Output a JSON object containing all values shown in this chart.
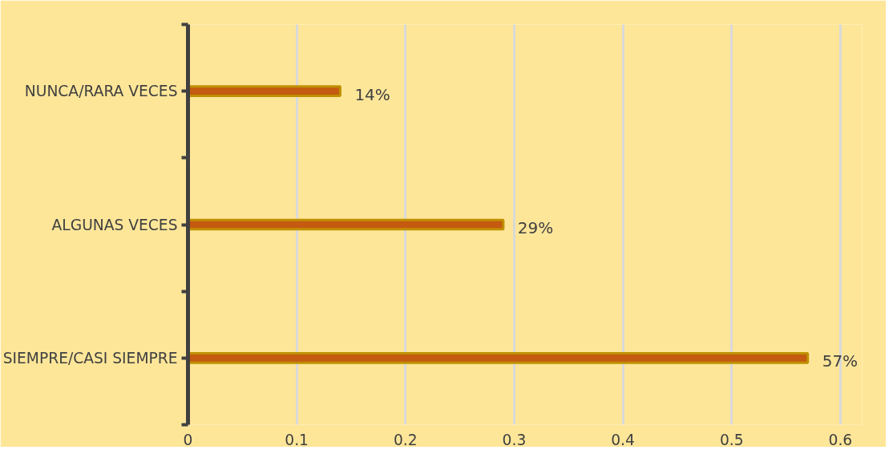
{
  "chart_data": {
    "type": "bar",
    "orientation": "horizontal",
    "categories": [
      "NUNCA/RARA VECES",
      "ALGUNAS VECES",
      "SIEMPRE/CASI SIEMPRE"
    ],
    "values": [
      0.14,
      0.29,
      0.57
    ],
    "value_labels": [
      "14%",
      "29%",
      "57%"
    ],
    "color": "#c55a11",
    "xlim": [
      0,
      0.62
    ],
    "xticks": [
      0,
      0.1,
      0.2,
      0.3,
      0.4,
      0.5,
      0.6
    ],
    "grid": "x"
  }
}
